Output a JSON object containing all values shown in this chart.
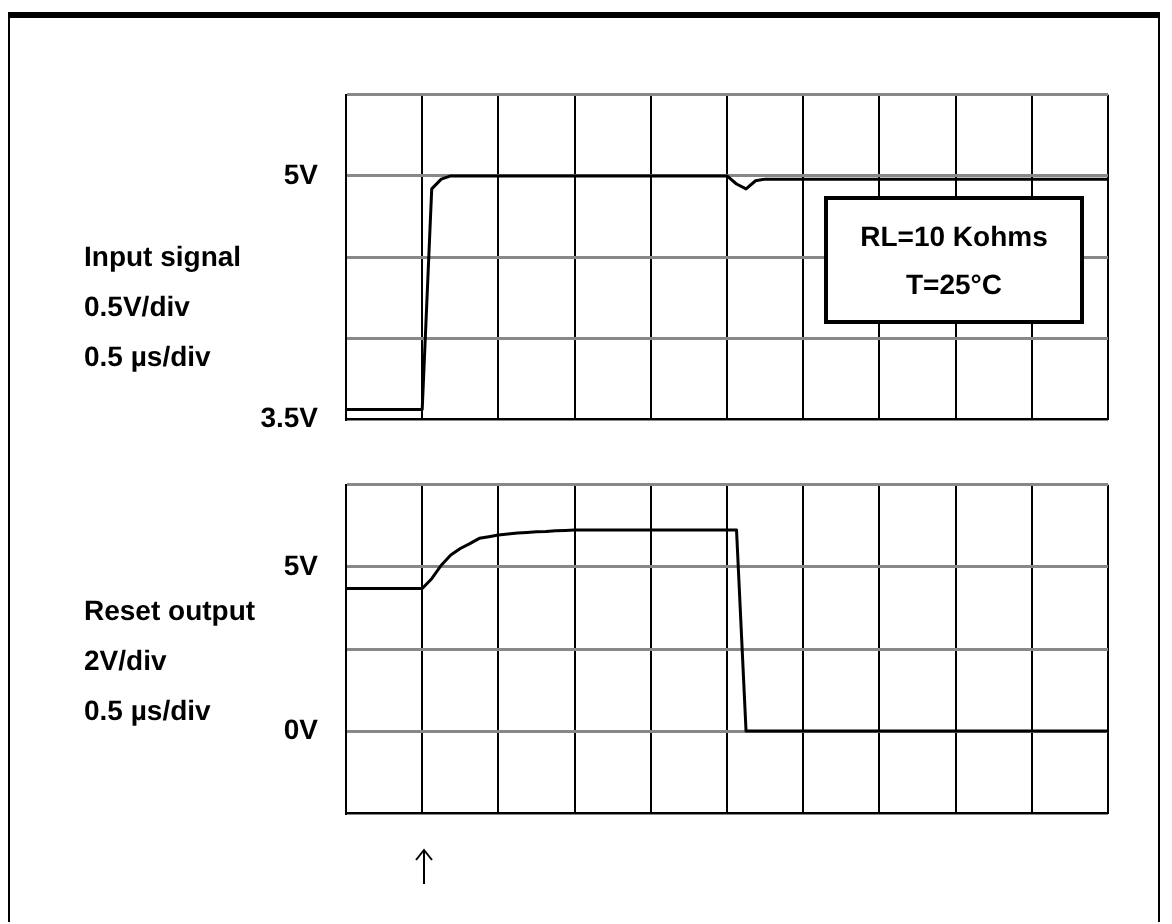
{
  "chart_data": [
    {
      "type": "line",
      "ylabel": "Input signal",
      "annotations": [
        "0.5V/div",
        "0.5 µs/div",
        "RL=10 Kohms",
        "T=25°C"
      ],
      "grid": true,
      "tick_labels": "y",
      "marker": "none",
      "line_style": "solid",
      "categories": [
        null,
        null,
        null,
        null,
        null,
        null,
        null,
        null,
        null,
        null,
        null,
        null,
        null,
        null,
        null,
        null,
        null,
        null,
        null,
        null,
        null,
        null,
        null,
        null,
        null,
        null,
        null,
        null,
        null,
        null,
        null,
        null,
        null,
        null,
        null,
        null,
        null,
        null,
        null,
        null,
        null,
        null,
        null,
        null,
        null,
        null,
        null,
        null,
        null,
        null,
        null,
        null,
        null,
        null,
        null,
        null,
        null,
        null,
        null,
        null,
        null,
        null,
        null,
        null,
        null,
        null,
        null,
        null,
        null,
        null,
        null,
        null,
        null,
        null,
        null,
        null,
        null,
        null,
        null,
        null,
        null
      ],
      "ylim": [
        3.5,
        5.5
      ],
      "yticks": [
        {
          "value": 3.5,
          "label": "3.5V"
        },
        {
          "value": 4,
          "label": null
        },
        {
          "value": 4.5,
          "label": null
        },
        {
          "value": 5,
          "label": "5V"
        },
        {
          "value": 5.5,
          "label": null
        }
      ],
      "series": [
        {
          "color": "#000000",
          "values": [
            3.56,
            3.56,
            3.56,
            3.56,
            3.56,
            3.56,
            3.56,
            3.56,
            3.56,
            4.92,
            4.98,
            5,
            5,
            5,
            5,
            5,
            5,
            5,
            5,
            5,
            5,
            5,
            5,
            5,
            5,
            5,
            5,
            5,
            5,
            5,
            5,
            5,
            5,
            5,
            5,
            5,
            5,
            5,
            5,
            5,
            5,
            4.95,
            4.92,
            4.97,
            4.98,
            4.98,
            4.98,
            4.98,
            4.98,
            4.98,
            4.98,
            4.98,
            4.98,
            4.98,
            4.98,
            4.98,
            4.98,
            4.98,
            4.98,
            4.98,
            4.98,
            4.98,
            4.98,
            4.98,
            4.98,
            4.98,
            4.98,
            4.98,
            4.98,
            4.98,
            4.98,
            4.98,
            4.98,
            4.98,
            4.98,
            4.98,
            4.98,
            4.98,
            4.98,
            4.98,
            4.98
          ]
        }
      ]
    },
    {
      "type": "line",
      "ylabel": "Reset output",
      "annotations": [
        "2V/div",
        "0.5 µs/div"
      ],
      "grid": true,
      "tick_labels": "y",
      "marker": "none",
      "line_style": "solid",
      "categories": [
        null,
        null,
        null,
        null,
        null,
        null,
        null,
        null,
        null,
        null,
        null,
        null,
        null,
        null,
        null,
        null,
        null,
        null,
        null,
        null,
        null,
        null,
        null,
        null,
        null,
        null,
        null,
        null,
        null,
        null,
        null,
        null,
        null,
        null,
        null,
        null,
        null,
        null,
        null,
        null,
        null,
        null,
        null,
        null,
        null,
        null,
        null,
        null,
        null,
        null,
        null,
        null,
        null,
        null,
        null,
        null,
        null,
        null,
        null,
        null,
        null,
        null,
        null,
        null,
        null,
        null,
        null,
        null,
        null,
        null,
        null,
        null,
        null,
        null,
        null,
        null,
        null,
        null,
        null,
        null,
        null
      ],
      "ylim": [
        -2.5,
        7.5
      ],
      "yticks": [
        {
          "value": -2.5,
          "label": null
        },
        {
          "value": 0,
          "label": "0V"
        },
        {
          "value": 2.5,
          "label": null
        },
        {
          "value": 5,
          "label": "5V"
        },
        {
          "value": 7.5,
          "label": null
        }
      ],
      "series": [
        {
          "color": "#000000",
          "values": [
            4.34,
            4.34,
            4.34,
            4.34,
            4.34,
            4.34,
            4.34,
            4.34,
            4.34,
            4.64,
            5.05,
            5.36,
            5.56,
            5.71,
            5.87,
            5.92,
            5.97,
            6.0,
            6.03,
            6.05,
            6.07,
            6.08,
            6.1,
            6.11,
            6.12,
            6.12,
            6.12,
            6.12,
            6.12,
            6.12,
            6.12,
            6.12,
            6.12,
            6.12,
            6.12,
            6.12,
            6.12,
            6.12,
            6.12,
            6.12,
            6.12,
            6.12,
            0,
            0,
            0,
            0,
            0,
            0,
            0,
            0,
            0,
            0,
            0,
            0,
            0,
            0,
            0,
            0,
            0,
            0,
            0,
            0,
            0,
            0,
            0,
            0,
            0,
            0,
            0,
            0,
            0,
            0,
            0,
            0,
            0,
            0,
            0,
            0,
            0,
            0,
            0
          ]
        }
      ]
    }
  ]
}
